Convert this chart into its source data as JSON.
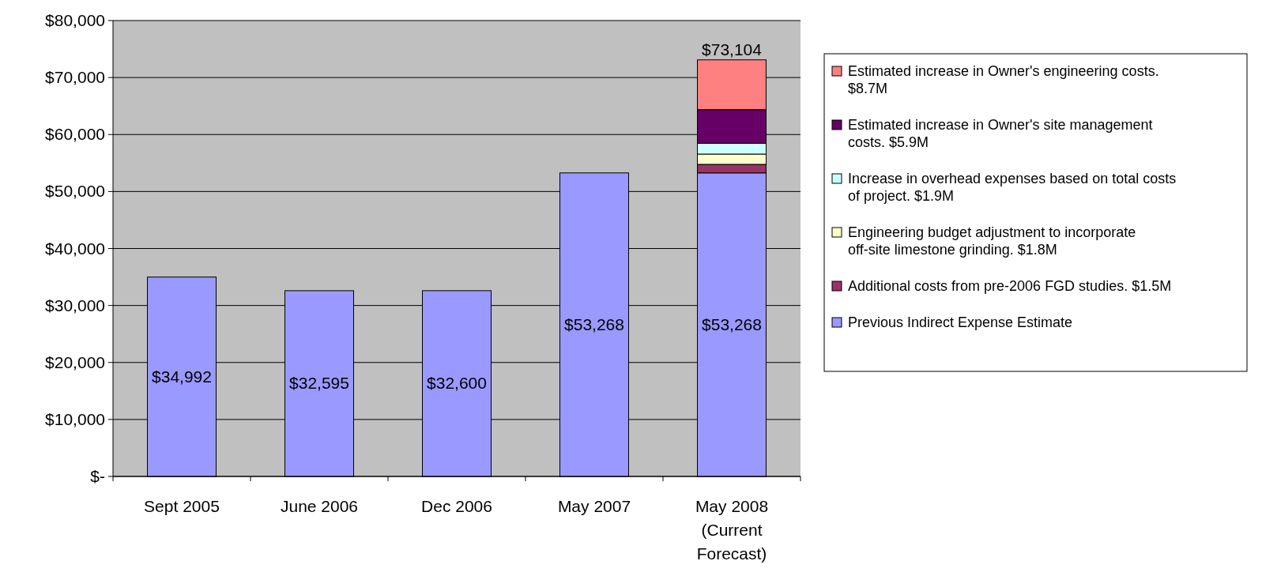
{
  "chart_data": {
    "type": "bar",
    "stacked": true,
    "categories": [
      "Sept 2005",
      "June 2006",
      "Dec 2006",
      "May 2007",
      "May 2008 (Current Forecast)"
    ],
    "series": [
      {
        "name": "Previous Indirect Expense Estimate",
        "color": "#9999ff",
        "values": [
          34992,
          32595,
          32600,
          53268,
          53268
        ],
        "value_labels": [
          "$34,992",
          "$32,595",
          "$32,600",
          "$53,268",
          "$53,268"
        ]
      },
      {
        "name": "Additional costs from pre-2006 FGD studies. $1.5M",
        "color": "#993366",
        "values": [
          null,
          null,
          null,
          null,
          1500
        ]
      },
      {
        "name": "Engineering budget adjustment to incorporate off-site limestone grinding. $1.8M",
        "color": "#ffffcc",
        "values": [
          null,
          null,
          null,
          null,
          1800
        ]
      },
      {
        "name": "Increase in overhead expenses based on total costs of project. $1.9M",
        "color": "#ccffff",
        "values": [
          null,
          null,
          null,
          null,
          1900
        ]
      },
      {
        "name": "Estimated increase in Owner's site management costs. $5.9M",
        "color": "#660066",
        "values": [
          null,
          null,
          null,
          null,
          5900
        ]
      },
      {
        "name": "Estimated increase in Owner's engineering costs. $8.7M",
        "color": "#ff8080",
        "values": [
          null,
          null,
          null,
          null,
          8736
        ]
      }
    ],
    "totals": [
      null,
      null,
      null,
      null,
      "$73,104"
    ],
    "ylim": [
      0,
      80000
    ],
    "yticks": [
      {
        "value": 0,
        "label": "$-"
      },
      {
        "value": 10000,
        "label": "$10,000"
      },
      {
        "value": 20000,
        "label": "$20,000"
      },
      {
        "value": 30000,
        "label": "$30,000"
      },
      {
        "value": 40000,
        "label": "$40,000"
      },
      {
        "value": 50000,
        "label": "$50,000"
      },
      {
        "value": 60000,
        "label": "$60,000"
      },
      {
        "value": 70000,
        "label": "$70,000"
      },
      {
        "value": 80000,
        "label": "$80,000"
      }
    ],
    "grid": "y",
    "legend": "right"
  }
}
